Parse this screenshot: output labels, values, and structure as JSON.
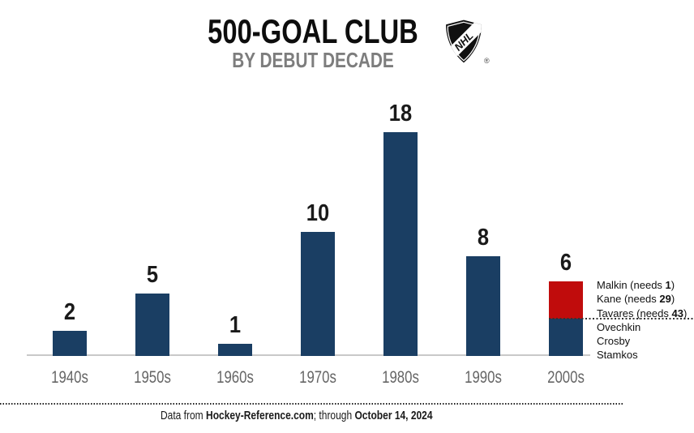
{
  "header": {
    "title": "500-GOAL CLUB",
    "subtitle": "BY DEBUT DECADE"
  },
  "logo": {
    "name": "NHL shield",
    "text": "NHL",
    "registered_mark": "®"
  },
  "chart_data": {
    "type": "bar",
    "title": "500-GOAL CLUB",
    "subtitle": "BY DEBUT DECADE",
    "xlabel": "",
    "ylabel": "",
    "ylim": [
      0,
      19
    ],
    "grid": false,
    "legend": "none",
    "categories": [
      "1940s",
      "1950s",
      "1960s",
      "1970s",
      "1980s",
      "1990s",
      "2000s"
    ],
    "values": [
      2,
      5,
      1,
      10,
      18,
      8,
      6
    ],
    "bar_color": "#1a3e63",
    "highlight_color": "#c00c0c",
    "value_label_color": "#1a1a1a",
    "axis_label_color": "#666666",
    "stacked_category": {
      "category": "2000s",
      "bottom_segment": {
        "value": 3,
        "color": "#1a3e63",
        "players": [
          "Ovechkin",
          "Crosby",
          "Stamkos"
        ]
      },
      "top_segment": {
        "value": 3,
        "color": "#c00c0c",
        "players": [
          "Malkin",
          "Kane",
          "Tavares"
        ]
      }
    },
    "annotations": {
      "pending_players": [
        {
          "prefix": "Malkin (needs ",
          "bold_value": "1",
          "suffix": ")"
        },
        {
          "prefix": "Kane (needs ",
          "bold_value": "29",
          "suffix": ")"
        },
        {
          "prefix": "Tavares (needs ",
          "bold_value": "43",
          "suffix": ")"
        }
      ],
      "achieved_players": [
        "Ovechkin",
        "Crosby",
        "Stamkos"
      ]
    }
  },
  "footer": {
    "parts": [
      {
        "text": "Data from ",
        "bold": false
      },
      {
        "text": "Hockey-Reference.com",
        "bold": true
      },
      {
        "text": "; through ",
        "bold": false
      },
      {
        "text": "October 14, 2024",
        "bold": true
      }
    ]
  }
}
